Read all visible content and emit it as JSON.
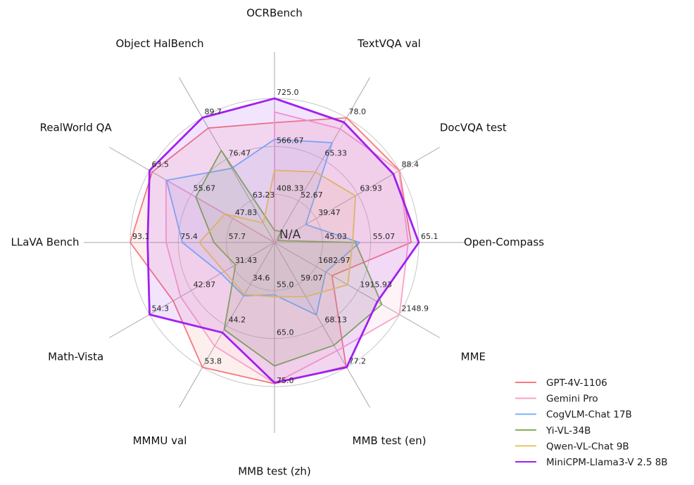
{
  "chart_data": {
    "type": "radar",
    "title": "",
    "center_label": "N/A",
    "grid": true,
    "legend_position": "lower right",
    "axes": [
      {
        "label": "OCRBench",
        "min": 250,
        "max": 725,
        "ticks": [
          "408.33",
          "566.67",
          "725.0"
        ]
      },
      {
        "label": "TextVQA val",
        "min": 40,
        "max": 78,
        "ticks": [
          "52.67",
          "65.33",
          "78.0"
        ]
      },
      {
        "label": "DocVQA test",
        "min": 15,
        "max": 88.4,
        "ticks": [
          "39.47",
          "63.93",
          "88.4"
        ]
      },
      {
        "label": "Open-Compass",
        "min": 35,
        "max": 65.1,
        "ticks": [
          "45.03",
          "55.07",
          "65.1"
        ]
      },
      {
        "label": "MME",
        "min": 1450,
        "max": 2148.9,
        "ticks": [
          "1682.97",
          "1915.93",
          "2148.9"
        ]
      },
      {
        "label": "MMB test (en)",
        "min": 50,
        "max": 77.2,
        "ticks": [
          "59.07",
          "68.13",
          "77.2"
        ]
      },
      {
        "label": "MMB test (zh)",
        "min": 45,
        "max": 75,
        "ticks": [
          "55.0",
          "65.0",
          "75.0"
        ]
      },
      {
        "label": "MMMU val",
        "min": 25,
        "max": 53.8,
        "ticks": [
          "34.6",
          "44.2",
          "53.8"
        ]
      },
      {
        "label": "Math-Vista",
        "min": 20,
        "max": 54.3,
        "ticks": [
          "31.43",
          "42.87",
          "54.3"
        ]
      },
      {
        "label": "LLaVA Bench",
        "min": 40,
        "max": 93.1,
        "ticks": [
          "57.7",
          "75.4",
          "93.1"
        ]
      },
      {
        "label": "RealWorld QA",
        "min": 40,
        "max": 63.5,
        "ticks": [
          "47.83",
          "55.67",
          "63.5"
        ]
      },
      {
        "label": "Object HalBench",
        "min": 50,
        "max": 89.7,
        "ticks": [
          "63.23",
          "76.47",
          "89.7"
        ]
      }
    ],
    "series": [
      {
        "name": "GPT-4V-1106",
        "color": "#F5797E",
        "emphasis": false,
        "values": [
          645,
          78.0,
          88.4,
          63.5,
          1771.5,
          77.0,
          74.4,
          53.8,
          47.8,
          93.1,
          63.0,
          86.4
        ]
      },
      {
        "name": "Gemini Pro",
        "color": "#F7A2C9",
        "emphasis": false,
        "values": [
          680,
          74.6,
          88.1,
          62.9,
          2148.9,
          73.6,
          74.3,
          48.9,
          45.8,
          79.9,
          60.4,
          null
        ]
      },
      {
        "name": "CogVLM-Chat 17B",
        "color": "#7AB4F5",
        "emphasis": false,
        "values": [
          590,
          70.4,
          33.3,
          52.8,
          1736.6,
          65.8,
          55.9,
          37.3,
          34.7,
          73.9,
          60.3,
          73.6
        ]
      },
      {
        "name": "Yi-VL-34B",
        "color": "#7FAE53",
        "emphasis": false,
        "values": [
          290,
          43.4,
          16.9,
          51.9,
          2050.2,
          72.4,
          70.7,
          45.1,
          30.7,
          62.3,
          54.8,
          79.3
        ]
      },
      {
        "name": "Qwen-VL-Chat 9B",
        "color": "#E6C65C",
        "emphasis": false,
        "values": [
          488,
          61.5,
          62.6,
          51.3,
          1860.0,
          61.8,
          56.3,
          37.0,
          33.8,
          67.7,
          49.3,
          56.2
        ]
      },
      {
        "name": "MiniCPM-Llama3-V 2.5 8B",
        "color": "#A020F0",
        "emphasis": true,
        "values": [
          725,
          76.6,
          84.8,
          65.1,
          2024.6,
          77.2,
          74.2,
          45.8,
          54.3,
          86.7,
          63.5,
          89.7
        ]
      }
    ],
    "style": {
      "ring_color": "#c6c6c6",
      "spoke_color": "#a8a8a8",
      "tick_color": "#262626",
      "axis_label_color": "#111111",
      "legend_text_color": "#1a1a1a",
      "fill_alpha": 0.12,
      "background": "#ffffff"
    }
  }
}
